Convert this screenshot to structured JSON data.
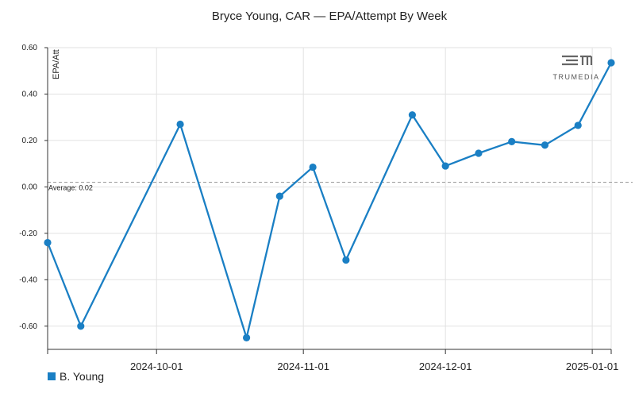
{
  "chart_data": {
    "type": "line",
    "title": "Bryce Young, CAR — EPA/Attempt By Week",
    "ylabel": "EPA/Att",
    "xlabel": "",
    "ylim": [
      -0.7,
      0.6
    ],
    "yticks": [
      0.6,
      0.4,
      0.2,
      0.0,
      -0.2,
      -0.4,
      -0.6
    ],
    "ytick_labels": [
      "0.60",
      "0.40",
      "0.20",
      "0.00",
      "-0.20",
      "-0.40",
      "-0.60"
    ],
    "xlim": [
      "2024-09-08",
      "2025-01-05"
    ],
    "xticks": [
      "2024-10-01",
      "2024-11-01",
      "2024-12-01",
      "2025-01-01"
    ],
    "grid": true,
    "average": {
      "value": 0.02,
      "label": "Average: 0.02"
    },
    "series": [
      {
        "name": "B. Young",
        "color": "#1a7fc4",
        "points": [
          {
            "x": "2024-09-08",
            "y": -0.24
          },
          {
            "x": "2024-09-15",
            "y": -0.6
          },
          {
            "x": "2024-10-06",
            "y": 0.27
          },
          {
            "x": "2024-10-20",
            "y": -0.65
          },
          {
            "x": "2024-10-27",
            "y": -0.04
          },
          {
            "x": "2024-11-03",
            "y": 0.085
          },
          {
            "x": "2024-11-10",
            "y": -0.315
          },
          {
            "x": "2024-11-24",
            "y": 0.31
          },
          {
            "x": "2024-12-01",
            "y": 0.09
          },
          {
            "x": "2024-12-08",
            "y": 0.145
          },
          {
            "x": "2024-12-15",
            "y": 0.195
          },
          {
            "x": "2024-12-22",
            "y": 0.18
          },
          {
            "x": "2024-12-29",
            "y": 0.265
          },
          {
            "x": "2025-01-05",
            "y": 0.535
          }
        ]
      }
    ],
    "legend": {
      "position": "bottom-left",
      "entries": [
        "B. Young"
      ]
    },
    "watermark": "TRUMEDIA"
  }
}
